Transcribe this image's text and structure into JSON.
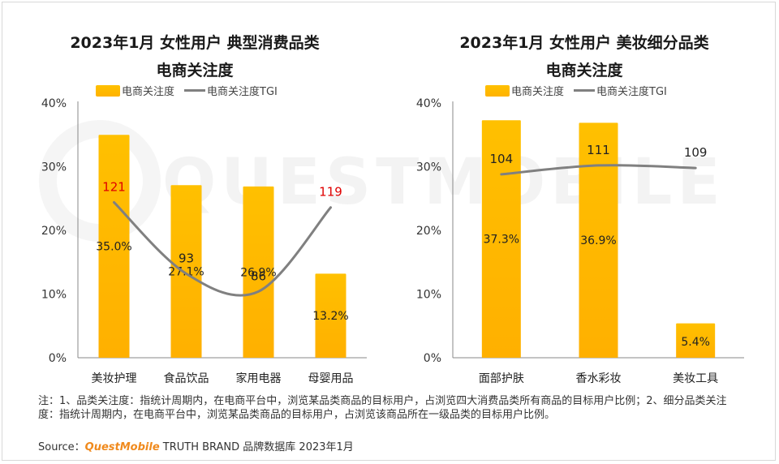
{
  "left_chart": {
    "title_line1": "2023年1月 女性用户 典型消费品类",
    "title_line2": "电商关注度",
    "legend_bar": "电商关注度",
    "legend_line": "电商关注度TGI"
  },
  "right_chart": {
    "title_line1": "2023年1月 女性用户 美妆细分品类",
    "title_line2": "电商关注度",
    "legend_bar": "电商关注度",
    "legend_line": "电商关注度TGI"
  },
  "watermark": "QUESTMOBILE",
  "footnote": "注：1、品类关注度：指统计周期内，在电商平台中，浏览某品类商品的目标用户，占浏览四大消费品类所有商品的目标用户比例；2、细分品类关注度：指统计周期内，在电商平台中，浏览某品类商品的目标用户，占浏览该商品所在一级品类的目标用户比例。",
  "source": {
    "prefix": "Source：",
    "brand": "QuestMobile",
    "rest": "TRUTH BRAND 品牌数据库 2023年1月"
  },
  "colors": {
    "bar_top": "#FFC000",
    "bar_bottom": "#FFB000",
    "tgi_line": "#808080",
    "highlight_label": "#E00000"
  },
  "chart_data": [
    {
      "type": "bar",
      "title": "2023年1月 女性用户 典型消费品类 电商关注度",
      "categories": [
        "美妆护理",
        "食品饮品",
        "家用电器",
        "母婴用品"
      ],
      "series": [
        {
          "name": "电商关注度",
          "values": [
            35.0,
            27.1,
            26.9,
            13.2
          ],
          "labels": [
            "35.0%",
            "27.1%",
            "26.9%",
            "13.2%"
          ],
          "axis": "left"
        },
        {
          "name": "电商关注度TGI",
          "type": "line",
          "values": [
            121,
            93,
            86,
            119
          ],
          "label_colors": [
            "#E00000",
            "#222222",
            "#222222",
            "#E00000"
          ]
        }
      ],
      "yticks": [
        "0%",
        "10%",
        "20%",
        "30%",
        "40%"
      ],
      "ylim": [
        0,
        40
      ],
      "legend": "top"
    },
    {
      "type": "bar",
      "title": "2023年1月 女性用户 美妆细分品类 电商关注度",
      "categories": [
        "面部护肤",
        "香水彩妆",
        "美妆工具"
      ],
      "series": [
        {
          "name": "电商关注度",
          "values": [
            37.3,
            36.9,
            5.4
          ],
          "labels": [
            "37.3%",
            "36.9%",
            "5.4%"
          ],
          "axis": "left"
        },
        {
          "name": "电商关注度TGI",
          "type": "line",
          "values": [
            104,
            111,
            109
          ],
          "label_colors": [
            "#222222",
            "#222222",
            "#222222"
          ]
        }
      ],
      "yticks": [
        "0%",
        "10%",
        "20%",
        "30%",
        "40%"
      ],
      "ylim": [
        0,
        40
      ],
      "legend": "top"
    }
  ]
}
